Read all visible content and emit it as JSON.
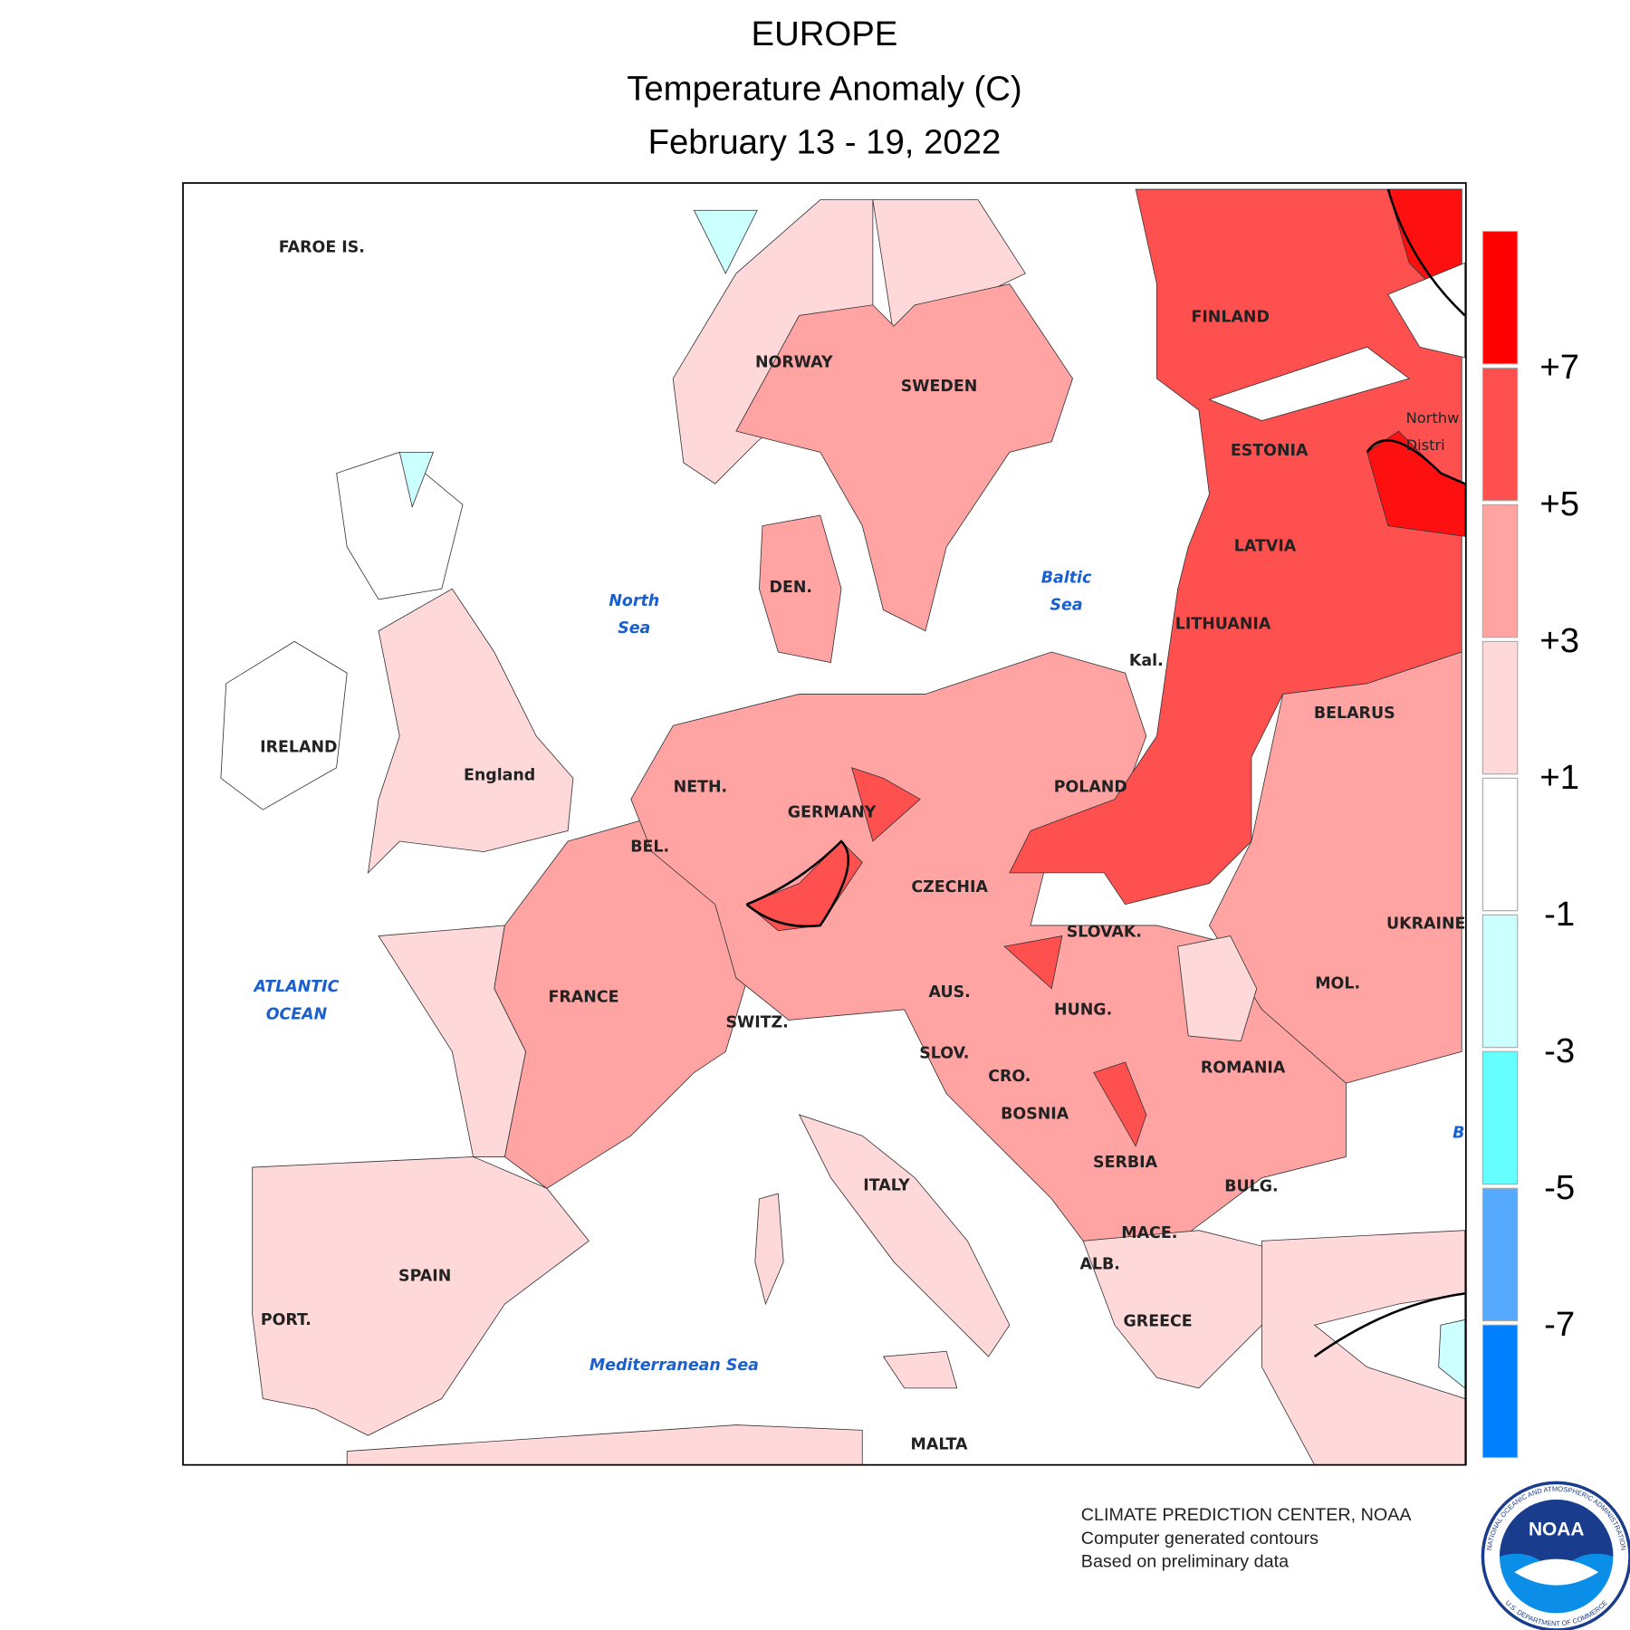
{
  "header": {
    "title": "EUROPE",
    "subtitle": "Temperature Anomaly (C)",
    "period": "February 13 - 19, 2022"
  },
  "map_labels": {
    "places": [
      "FAROE IS.",
      "NORWAY",
      "SWEDEN",
      "FINLAND",
      "ESTONIA",
      "LATVIA",
      "LITHUANIA",
      "Kal.",
      "DEN.",
      "IRELAND",
      "England",
      "NETH.",
      "GERMANY",
      "POLAND",
      "BELARUS",
      "BEL.",
      "CZECHIA",
      "SLOVAK.",
      "UKRAINE",
      "FRANCE",
      "AUS.",
      "SWITZ.",
      "HUNG.",
      "MOL.",
      "SLOV.",
      "CRO.",
      "ROMANIA",
      "BOSNIA",
      "SERBIA",
      "BULG.",
      "ITALY",
      "MACE.",
      "ALB.",
      "SPAIN",
      "PORT.",
      "GREECE",
      "MALTA"
    ],
    "waters": [
      {
        "lines": [
          "North",
          "Sea"
        ]
      },
      {
        "lines": [
          "Baltic",
          "Sea"
        ]
      },
      {
        "lines": [
          "ATLANTIC",
          "OCEAN"
        ]
      },
      {
        "lines": [
          "Mediterranean Sea"
        ]
      },
      {
        "lines": [
          "B"
        ]
      }
    ],
    "region": {
      "lines": [
        "Northw",
        "Distri"
      ]
    }
  },
  "legend": {
    "colors": [
      "#ff0000",
      "#ff5050",
      "#ffa3a3",
      "#ffd9d9",
      "#ffffff",
      "#ccffff",
      "#66ffff",
      "#55aaff",
      "#0080ff"
    ],
    "ticks": [
      {
        "value": 7,
        "label": "+7"
      },
      {
        "value": 5,
        "label": "+5"
      },
      {
        "value": 3,
        "label": "+3"
      },
      {
        "value": 1,
        "label": "+1"
      },
      -1,
      -3,
      -5,
      -7
    ]
  },
  "footer": {
    "lines": [
      "CLIMATE PREDICTION CENTER, NOAA",
      "Computer generated contours",
      "Based on preliminary data"
    ]
  },
  "logo": {
    "text": "NOAA",
    "ring_top": "NATIONAL OCEANIC AND ATMOSPHERIC ADMINISTRATION",
    "ring_bottom": "U.S. DEPARTMENT OF COMMERCE"
  }
}
